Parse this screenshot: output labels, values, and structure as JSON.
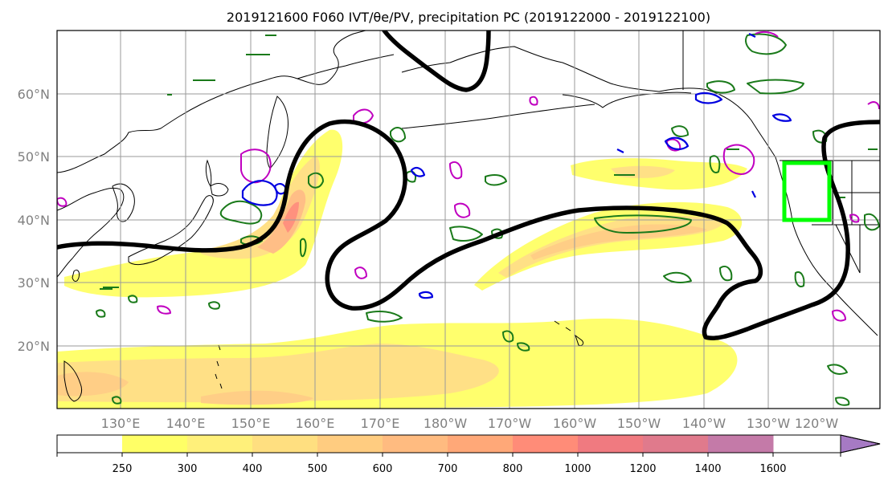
{
  "title": "2019121600 F060 IVT/θe/PV, precipitation PC (2019122000 - 2019122100)",
  "lat_labels": [
    "60°N",
    "50°N",
    "40°N",
    "30°N",
    "20°N"
  ],
  "lon_labels": [
    "130°E",
    "140°E",
    "150°E",
    "160°E",
    "170°E",
    "180°W",
    "170°W",
    "160°W",
    "150°W",
    "140°W",
    "130°W",
    "120°W"
  ],
  "colorbar": {
    "levels": [
      "250",
      "300",
      "400",
      "500",
      "600",
      "700",
      "800",
      "1000",
      "1200",
      "1400",
      "1600"
    ],
    "colors": [
      "#ffff66",
      "#fff07a",
      "#ffdf80",
      "#ffcc80",
      "#ffbb80",
      "#ffa878",
      "#ff8c78",
      "#f07a80",
      "#e07a8c",
      "#c47aa8",
      "#a67ac4"
    ]
  },
  "colors": {
    "ivt_fill_low": "#ffff66",
    "ivt_fill_mid": "#ffcc80",
    "ivt_fill_high": "#ff8c78",
    "pv_contour": "#000000",
    "green_contour": "#1a7a1a",
    "magenta_contour": "#c000c0",
    "blue_contour": "#0000e0",
    "region_box": "#00ff00"
  }
}
